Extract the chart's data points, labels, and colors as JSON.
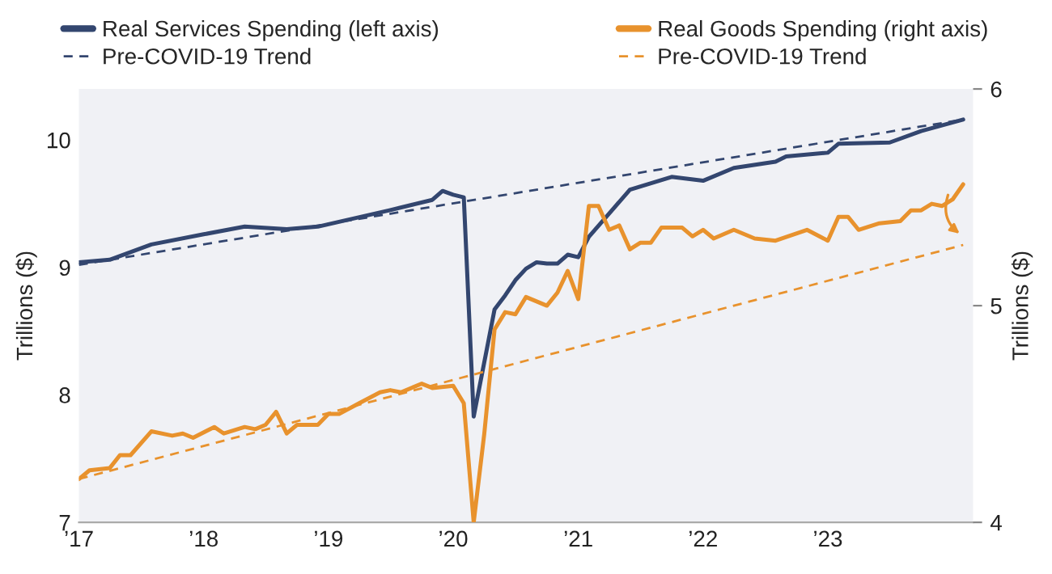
{
  "chart_data": {
    "type": "line",
    "xlim": [
      "2017-01",
      "2024-03"
    ],
    "xticks": [
      {
        "value": "2017-01",
        "label": "’17"
      },
      {
        "value": "2018-01",
        "label": "’18"
      },
      {
        "value": "2019-01",
        "label": "’19"
      },
      {
        "value": "2020-01",
        "label": "’20"
      },
      {
        "value": "2021-01",
        "label": "’21"
      },
      {
        "value": "2022-01",
        "label": "’22"
      },
      {
        "value": "2023-01",
        "label": "’23"
      }
    ],
    "ylim": [
      7,
      10.4
    ],
    "yticks": [
      7,
      8,
      9,
      10
    ],
    "y2lim": [
      4,
      6
    ],
    "y2ticks": [
      4,
      5,
      6
    ],
    "ylabel": "Trillions ($)",
    "y2label": "Trillions ($)",
    "legend": "top",
    "grid": false,
    "series": [
      {
        "name": "Real Services Spending (left axis)",
        "color": "#33466f",
        "line_style": "solid",
        "x": [
          "2017-01",
          "2017-04",
          "2017-08",
          "2018-01",
          "2018-05",
          "2018-09",
          "2018-12",
          "2019-07",
          "2019-11",
          "2019-12",
          "2020-01",
          "2020-02",
          "2020-03",
          "2020-05",
          "2020-06",
          "2020-07",
          "2020-08",
          "2020-09",
          "2020-10",
          "2020-11",
          "2020-12",
          "2021-01",
          "2021-02",
          "2021-06",
          "2021-10",
          "2022-01",
          "2022-04",
          "2022-08",
          "2022-09",
          "2023-01",
          "2023-02",
          "2023-07",
          "2023-10",
          "2024-02"
        ],
        "values": [
          9.04,
          9.06,
          9.18,
          9.26,
          9.32,
          9.3,
          9.32,
          9.45,
          9.53,
          9.6,
          9.57,
          9.55,
          7.83,
          8.67,
          8.78,
          8.9,
          8.99,
          9.04,
          9.03,
          9.03,
          9.1,
          9.08,
          9.24,
          9.61,
          9.71,
          9.68,
          9.78,
          9.83,
          9.87,
          9.9,
          9.97,
          9.98,
          10.07,
          10.16
        ]
      },
      {
        "name": "Pre-COVID-19 Trend",
        "color": "#33466f",
        "line_style": "dashed",
        "x": [
          "2017-01",
          "2024-02"
        ],
        "values": [
          9.02,
          10.16
        ]
      },
      {
        "name": "Real Goods Spending (right axis)",
        "color": "#e8922d",
        "line_style": "solid",
        "axis": "y2",
        "x": [
          "2017-01",
          "2017-02",
          "2017-04",
          "2017-05",
          "2017-06",
          "2017-08",
          "2017-10",
          "2017-11",
          "2017-12",
          "2018-02",
          "2018-03",
          "2018-05",
          "2018-06",
          "2018-07",
          "2018-08",
          "2018-09",
          "2018-10",
          "2018-12",
          "2019-01",
          "2019-02",
          "2019-04",
          "2019-06",
          "2019-07",
          "2019-08",
          "2019-10",
          "2019-11",
          "2020-01",
          "2020-02",
          "2020-03",
          "2020-04",
          "2020-05",
          "2020-06",
          "2020-07",
          "2020-08",
          "2020-10",
          "2020-11",
          "2020-12",
          "2021-01",
          "2021-02",
          "2021-03",
          "2021-04",
          "2021-05",
          "2021-06",
          "2021-07",
          "2021-08",
          "2021-09",
          "2021-11",
          "2021-12",
          "2022-01",
          "2022-02",
          "2022-04",
          "2022-06",
          "2022-08",
          "2022-11",
          "2023-01",
          "2023-02",
          "2023-03",
          "2023-04",
          "2023-06",
          "2023-08",
          "2023-09",
          "2023-10",
          "2023-11",
          "2023-12",
          "2024-01",
          "2024-02"
        ],
        "values": [
          4.2,
          4.24,
          4.25,
          4.31,
          4.31,
          4.42,
          4.4,
          4.41,
          4.39,
          4.44,
          4.41,
          4.44,
          4.43,
          4.45,
          4.51,
          4.41,
          4.45,
          4.45,
          4.5,
          4.5,
          4.55,
          4.6,
          4.61,
          4.6,
          4.64,
          4.62,
          4.63,
          4.55,
          4.0,
          4.41,
          4.89,
          4.97,
          4.96,
          5.04,
          5.0,
          5.06,
          5.16,
          5.03,
          5.46,
          5.46,
          5.35,
          5.37,
          5.26,
          5.29,
          5.29,
          5.36,
          5.36,
          5.32,
          5.35,
          5.31,
          5.35,
          5.31,
          5.3,
          5.35,
          5.3,
          5.41,
          5.41,
          5.35,
          5.38,
          5.39,
          5.44,
          5.44,
          5.47,
          5.46,
          5.49,
          5.56
        ]
      },
      {
        "name": "Pre-COVID-19 Trend",
        "color": "#e8922d",
        "line_style": "dashed",
        "axis": "y2",
        "x": [
          "2017-01",
          "2024-02"
        ],
        "values": [
          4.2,
          5.28
        ]
      }
    ]
  }
}
